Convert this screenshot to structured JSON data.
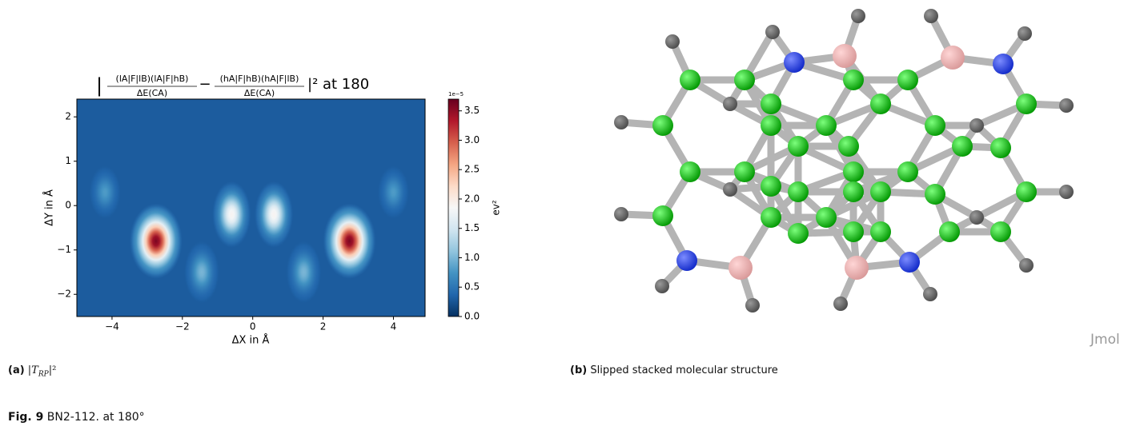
{
  "chart_data": {
    "type": "heatmap",
    "title": {
      "open": "|",
      "num1": "(lA|F|lB)(lA|F|hB)",
      "den1": "ΔE(CA)",
      "minus": "−",
      "num2": "(hA|F|hB)(hA|F|lB)",
      "den2": "ΔE(CA)",
      "close": "|² at 180"
    },
    "xlabel": "ΔX in Å",
    "ylabel": "ΔY in Å",
    "xlim": [
      -5,
      4.9
    ],
    "ylim": [
      -2.5,
      2.4
    ],
    "xticks": [
      {
        "value": -4,
        "label": "−4"
      },
      {
        "value": -2,
        "label": "−2"
      },
      0,
      2,
      4
    ],
    "yticks": [
      {
        "value": -2,
        "label": "−2"
      },
      {
        "value": -1,
        "label": "−1"
      },
      0,
      1,
      2
    ],
    "colorbar": {
      "label": "ev²",
      "offset": "1e−5",
      "clim": [
        0,
        3.7
      ],
      "ticks": [
        {
          "value": 0,
          "label": "0.0"
        },
        {
          "value": 0.5,
          "label": "0.5"
        },
        {
          "value": 1,
          "label": "1.0"
        },
        {
          "value": 1.5,
          "label": "1.5"
        },
        {
          "value": 2,
          "label": "2.0"
        },
        {
          "value": 2.5,
          "label": "2.5"
        },
        {
          "value": 3,
          "label": "3.0"
        },
        {
          "value": 3.5,
          "label": "3.5"
        }
      ]
    },
    "floor": 0.3,
    "peaks": {
      "x": [
        -2.75,
        2.75,
        -0.6,
        0.6,
        -1.45,
        1.45,
        -4.2,
        4.0
      ],
      "y": [
        -0.8,
        -0.8,
        -0.2,
        -0.2,
        -1.5,
        -1.5,
        0.3,
        0.3
      ],
      "values": [
        3.6,
        3.6,
        1.9,
        1.9,
        1.0,
        1.0,
        0.8,
        0.8
      ]
    }
  },
  "panel_a": {
    "tag": "(a)",
    "caption_open": "|T",
    "caption_sub": "RP",
    "caption_close": "|²"
  },
  "panel_b": {
    "tag": "(b)",
    "caption": "Slipped stacked molecular structure",
    "watermark": "Jmol"
  },
  "figure": {
    "label": "Fig. 9",
    "caption": "BN2-112. at 180°"
  }
}
